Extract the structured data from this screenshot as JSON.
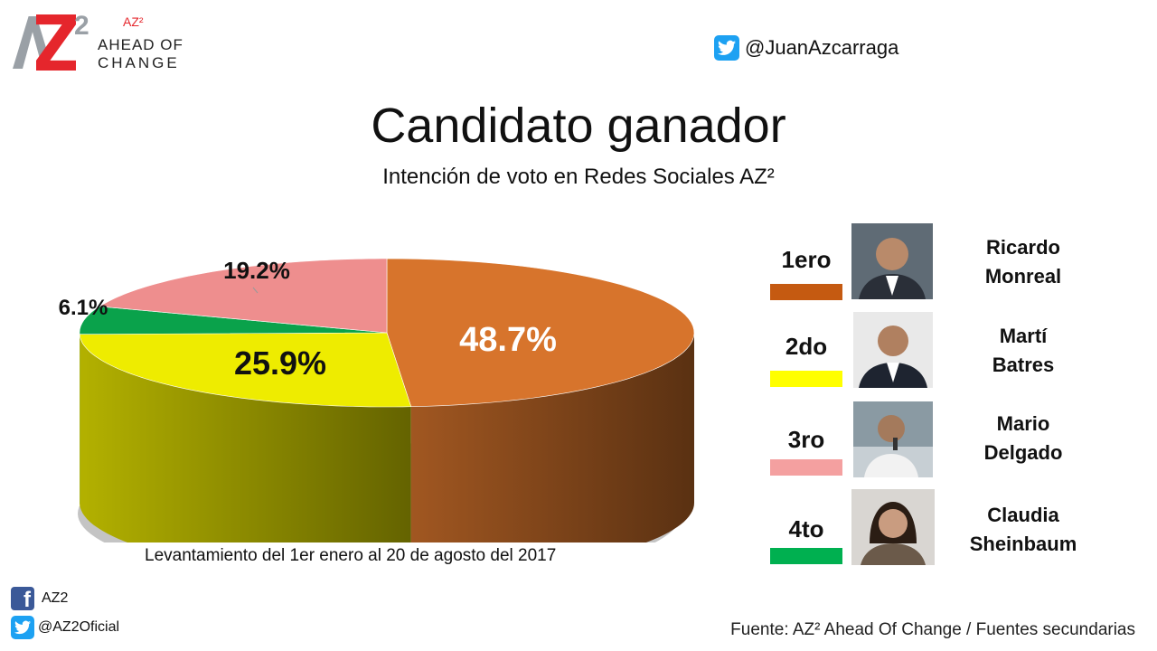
{
  "logo": {
    "mark_text": "Z",
    "mark_two": "2",
    "az": "AZ²",
    "line1": "AHEAD OF",
    "line2": "CHANGE"
  },
  "twitter_top": {
    "handle": "@JuanAzcarraga"
  },
  "chart_data": {
    "type": "pie",
    "title": "Candidato ganador",
    "subtitle": "Intención de voto en Redes Sociales AZ²",
    "slices": [
      {
        "value": 48.7,
        "label": "48.7%",
        "color": "#d7742c"
      },
      {
        "value": 25.9,
        "label": "25.9%",
        "color": "#eeec00"
      },
      {
        "value": 6.1,
        "label": "6.1%",
        "color": "#0aa24b"
      },
      {
        "value": 19.2,
        "label": "19.2%",
        "color": "#ee8e8e"
      }
    ]
  },
  "period": "Levantamiento del 1er enero al 20 de agosto del 2017",
  "ranking": [
    {
      "position": "1ero",
      "name_line1": "Ricardo",
      "name_line2": "Monreal",
      "color": "#c55a11"
    },
    {
      "position": "2do",
      "name_line1": "Martí",
      "name_line2": "Batres",
      "color": "#ffff00"
    },
    {
      "position": "3ro",
      "name_line1": "Mario",
      "name_line2": "Delgado",
      "color": "#f4a0a0"
    },
    {
      "position": "4to",
      "name_line1": "Claudia",
      "name_line2": "Sheinbaum",
      "color": "#00b050"
    }
  ],
  "social": {
    "facebook": "AZ2",
    "twitter": "@AZ2Oficial"
  },
  "source": "Fuente: AZ² Ahead Of Change / Fuentes secundarias"
}
